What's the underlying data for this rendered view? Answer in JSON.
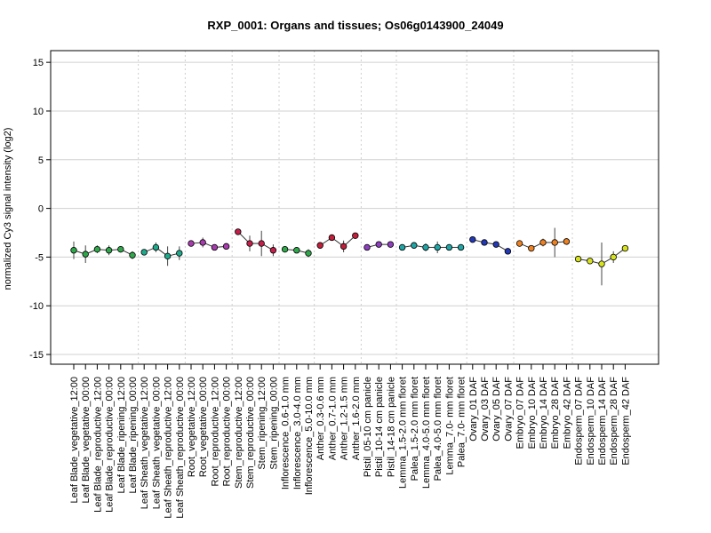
{
  "chart_data": {
    "type": "line",
    "title": "RXP_0001: Organs and tissues; Os06g0143900_24049",
    "xlabel": "",
    "ylabel": "normalized Cy3 signal intensity (log2)",
    "ylim": [
      -16,
      16.2
    ],
    "yticks": [
      -15,
      -10,
      -5,
      0,
      5,
      10,
      15
    ],
    "grid": true,
    "categories": [
      "Leaf Blade_vegetative_12:00",
      "Leaf Blade_vegetative_00:00",
      "Leaf Blade_reproductive_12:00",
      "Leaf Blade_reproductive_00:00",
      "Leaf Blade_ripening_12:00",
      "Leaf Blade_ripening_00:00",
      "Leaf Sheath_vegetative_12:00",
      "Leaf Sheath_vegetative_00:00",
      "Leaf Sheath_reproductive_12:00",
      "Leaf Sheath_reproductive_00:00",
      "Root_vegetative_12:00",
      "Root_vegetative_00:00",
      "Root_reproductive_12:00",
      "Root_reproductive_00:00",
      "Stem_reproductive_12:00",
      "Stem_reproductive_00:00",
      "Stem_ripening_12:00",
      "Stem_ripening_00:00",
      "Inflorescence_0.6-1.0 mm",
      "Inflorescence_3.0-4.0 mm",
      "Inflorescence_5.0-10.0 mm",
      "Anther_0.3-0.6 mm",
      "Anther_0.7-1.0 mm",
      "Anther_1.2-1.5 mm",
      "Anther_1.6-2.0 mm",
      "Pistil_05-10 cm panicle",
      "Pistil_10-14 cm panicle",
      "Pistil_14-18 cm panicle",
      "Lemma_1.5-2.0 mm floret",
      "Palea_1.5-2.0 mm floret",
      "Lemma_4.0-5.0 mm floret",
      "Palea_4.0-5.0 mm floret",
      "Lemma_7.0- mm floret",
      "Palea_7.0- mm floret",
      "Ovary_01 DAF",
      "Ovary_03 DAF",
      "Ovary_05 DAF",
      "Ovary_07 DAF",
      "Embryo_07 DAF",
      "Embryo_10 DAF",
      "Embryo_14 DAF",
      "Embryo_28 DAF",
      "Embryo_42 DAF",
      "Endosperm_07 DAF",
      "Endosperm_10 DAF",
      "Endosperm_14 DAF",
      "Endosperm_28 DAF",
      "Endosperm_42 DAF"
    ],
    "values": [
      -4.3,
      -4.7,
      -4.2,
      -4.3,
      -4.2,
      -4.8,
      -4.5,
      -4.0,
      -4.9,
      -4.6,
      -3.6,
      -3.5,
      -4.0,
      -3.9,
      -2.4,
      -3.6,
      -3.6,
      -4.3,
      -4.2,
      -4.3,
      -4.6,
      -3.8,
      -3.0,
      -3.9,
      -2.8,
      -4.0,
      -3.7,
      -3.7,
      -4.0,
      -3.8,
      -4.0,
      -4.0,
      -4.0,
      -4.0,
      -3.2,
      -3.5,
      -3.7,
      -4.4,
      -3.6,
      -4.1,
      -3.5,
      -3.5,
      -3.4,
      -5.2,
      -5.4,
      -5.7,
      -5.0,
      -4.1
    ],
    "errors": [
      0.9,
      0.9,
      0.4,
      0.5,
      0.3,
      0.4,
      0.3,
      0.5,
      1.0,
      0.7,
      0.3,
      0.5,
      0.3,
      0.2,
      0.3,
      0.8,
      1.3,
      0.6,
      0.3,
      0.3,
      0.4,
      0.3,
      0.3,
      0.6,
      0.3,
      0.3,
      0.3,
      0.2,
      0.3,
      0.2,
      0.4,
      0.6,
      0.3,
      0.2,
      0.2,
      0.2,
      0.2,
      0.2,
      0.3,
      0.2,
      0.4,
      1.5,
      0.3,
      0.3,
      0.2,
      2.2,
      0.6,
      0.3
    ],
    "groups": [
      {
        "name": "Leaf Blade",
        "start": 0,
        "end": 5,
        "color": "#2EA84A"
      },
      {
        "name": "Leaf Sheath",
        "start": 6,
        "end": 9,
        "color": "#1FA98B"
      },
      {
        "name": "Root",
        "start": 10,
        "end": 13,
        "color": "#A83CAE"
      },
      {
        "name": "Stem",
        "start": 14,
        "end": 17,
        "color": "#C21F4A"
      },
      {
        "name": "Inflorescence",
        "start": 18,
        "end": 20,
        "color": "#2EA84A"
      },
      {
        "name": "Anther",
        "start": 21,
        "end": 24,
        "color": "#C21F3C"
      },
      {
        "name": "Pistil",
        "start": 25,
        "end": 27,
        "color": "#8D3FBF"
      },
      {
        "name": "Lemma/Palea",
        "start": 28,
        "end": 33,
        "color": "#1FA5A5"
      },
      {
        "name": "Ovary",
        "start": 34,
        "end": 37,
        "color": "#2338B5"
      },
      {
        "name": "Embryo",
        "start": 38,
        "end": 42,
        "color": "#EE8222"
      },
      {
        "name": "Endosperm",
        "start": 43,
        "end": 47,
        "color": "#D7E21F"
      }
    ],
    "group_colors": [
      "#2EA84A",
      "#1FA98B",
      "#A83CAE",
      "#C21F4A",
      "#2EA84A",
      "#C21F3C",
      "#8D3FBF",
      "#1FA5A5",
      "#2338B5",
      "#EE8222",
      "#D7E21F"
    ]
  }
}
